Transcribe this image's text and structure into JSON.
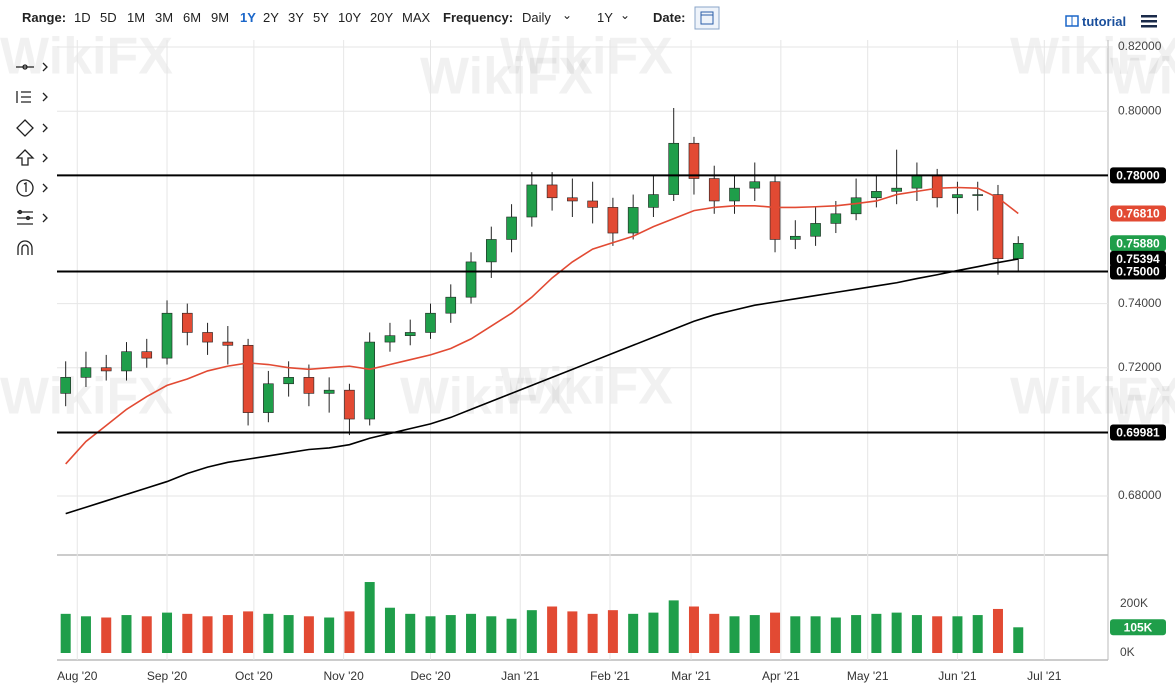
{
  "toolbar": {
    "range_label": "Range:",
    "ranges": [
      "1D",
      "5D",
      "1M",
      "3M",
      "6M",
      "9M",
      "1Y",
      "2Y",
      "3Y",
      "5Y",
      "10Y",
      "20Y",
      "MAX"
    ],
    "active_range": "1Y",
    "active_color": "#1a66c9",
    "frequency_label": "Frequency:",
    "frequency": "Daily",
    "period": "1Y",
    "date_label": "Date:",
    "tutorial": "tutorial"
  },
  "watermark": "WikiFX",
  "chart_data": {
    "type": "candlestick",
    "x": [
      3,
      10,
      17,
      24,
      31,
      38,
      45,
      52,
      59,
      66,
      73,
      80,
      87,
      94,
      101,
      108,
      115,
      122,
      129,
      136,
      143,
      150,
      157,
      164,
      171,
      178,
      185,
      192,
      199,
      206,
      213,
      220,
      227,
      234,
      241,
      248,
      255,
      262,
      269,
      276,
      283,
      290,
      297,
      304,
      311,
      318,
      325,
      332
    ],
    "open": [
      0.712,
      0.717,
      0.72,
      0.719,
      0.725,
      0.723,
      0.737,
      0.731,
      0.728,
      0.727,
      0.706,
      0.715,
      0.717,
      0.712,
      0.713,
      0.704,
      0.728,
      0.73,
      0.731,
      0.737,
      0.742,
      0.753,
      0.76,
      0.767,
      0.777,
      0.773,
      0.772,
      0.77,
      0.762,
      0.77,
      0.774,
      0.79,
      0.779,
      0.772,
      0.776,
      0.778,
      0.76,
      0.761,
      0.765,
      0.768,
      0.773,
      0.775,
      0.776,
      0.78,
      0.773,
      0.774,
      0.774,
      0.754
    ],
    "high": [
      0.722,
      0.725,
      0.724,
      0.728,
      0.729,
      0.741,
      0.74,
      0.734,
      0.733,
      0.729,
      0.719,
      0.722,
      0.721,
      0.717,
      0.715,
      0.731,
      0.734,
      0.735,
      0.74,
      0.746,
      0.756,
      0.764,
      0.771,
      0.781,
      0.781,
      0.779,
      0.778,
      0.773,
      0.774,
      0.78,
      0.801,
      0.792,
      0.783,
      0.78,
      0.784,
      0.78,
      0.766,
      0.77,
      0.772,
      0.779,
      0.78,
      0.788,
      0.784,
      0.782,
      0.778,
      0.778,
      0.777,
      0.761
    ],
    "low": [
      0.708,
      0.714,
      0.716,
      0.716,
      0.72,
      0.721,
      0.727,
      0.724,
      0.721,
      0.702,
      0.703,
      0.711,
      0.708,
      0.706,
      0.699,
      0.702,
      0.725,
      0.727,
      0.729,
      0.734,
      0.74,
      0.748,
      0.756,
      0.764,
      0.769,
      0.767,
      0.765,
      0.758,
      0.76,
      0.767,
      0.772,
      0.774,
      0.768,
      0.768,
      0.772,
      0.756,
      0.757,
      0.758,
      0.762,
      0.766,
      0.77,
      0.771,
      0.772,
      0.77,
      0.768,
      0.769,
      0.749,
      0.75
    ],
    "close": [
      0.717,
      0.72,
      0.719,
      0.725,
      0.723,
      0.737,
      0.731,
      0.728,
      0.727,
      0.706,
      0.715,
      0.717,
      0.712,
      0.713,
      0.704,
      0.728,
      0.73,
      0.731,
      0.737,
      0.742,
      0.753,
      0.76,
      0.767,
      0.777,
      0.773,
      0.772,
      0.77,
      0.762,
      0.77,
      0.774,
      0.79,
      0.779,
      0.772,
      0.776,
      0.778,
      0.76,
      0.761,
      0.765,
      0.768,
      0.773,
      0.775,
      0.776,
      0.78,
      0.773,
      0.774,
      0.774,
      0.754,
      0.7588
    ],
    "up_color": "#1f9e4a",
    "down_color": "#e24a33",
    "xlim": [
      0,
      363
    ],
    "xticks": [
      {
        "value": 7,
        "label": "Aug '20"
      },
      {
        "value": 38,
        "label": "Sep '20"
      },
      {
        "value": 68,
        "label": "Oct '20"
      },
      {
        "value": 99,
        "label": "Nov '20"
      },
      {
        "value": 129,
        "label": "Dec '20"
      },
      {
        "value": 160,
        "label": "Jan '21"
      },
      {
        "value": 191,
        "label": "Feb '21"
      },
      {
        "value": 219,
        "label": "Mar '21"
      },
      {
        "value": 250,
        "label": "Apr '21"
      },
      {
        "value": 280,
        "label": "May '21"
      },
      {
        "value": 311,
        "label": "Jun '21"
      },
      {
        "value": 341,
        "label": "Jul '21"
      }
    ],
    "ylim": [
      0.6616,
      0.8222
    ],
    "yticks": [
      {
        "value": 0.82,
        "label": "0.82000"
      },
      {
        "value": 0.8,
        "label": "0.80000"
      },
      {
        "value": 0.74,
        "label": "0.74000"
      },
      {
        "value": 0.72,
        "label": "0.72000"
      },
      {
        "value": 0.68,
        "label": "0.68000"
      }
    ],
    "grid": true,
    "lines": [
      {
        "color": "#e24a33",
        "values": [
          0.69,
          0.697,
          0.702,
          0.707,
          0.711,
          0.7145,
          0.7165,
          0.719,
          0.7205,
          0.7215,
          0.721,
          0.72,
          0.7195,
          0.72,
          0.7205,
          0.7195,
          0.721,
          0.7225,
          0.724,
          0.726,
          0.729,
          0.733,
          0.737,
          0.742,
          0.748,
          0.753,
          0.757,
          0.759,
          0.761,
          0.764,
          0.7665,
          0.769,
          0.77,
          0.7705,
          0.7705,
          0.77,
          0.77,
          0.7702,
          0.7705,
          0.7712,
          0.772,
          0.774,
          0.775,
          0.776,
          0.7762,
          0.776,
          0.773,
          0.7681
        ]
      },
      {
        "color": "#000000",
        "values": [
          0.6745,
          0.6765,
          0.6785,
          0.6805,
          0.6825,
          0.6845,
          0.687,
          0.689,
          0.6905,
          0.6915,
          0.6925,
          0.6935,
          0.6945,
          0.695,
          0.696,
          0.698,
          0.6995,
          0.701,
          0.7025,
          0.7045,
          0.707,
          0.7095,
          0.712,
          0.7145,
          0.717,
          0.7195,
          0.722,
          0.7245,
          0.727,
          0.7295,
          0.732,
          0.7345,
          0.7365,
          0.738,
          0.7395,
          0.7405,
          0.7415,
          0.7425,
          0.7435,
          0.7445,
          0.7455,
          0.7465,
          0.7478,
          0.749,
          0.7503,
          0.7515,
          0.7528,
          0.7539
        ]
      }
    ],
    "hlines": [
      {
        "value": 0.78,
        "label": "0.78000"
      },
      {
        "value": 0.75,
        "label": "0.75000"
      },
      {
        "value": 0.69981,
        "label": "0.69981"
      }
    ],
    "hline_color": "#000000",
    "badges": [
      {
        "value": 0.7681,
        "label": "0.76810",
        "color": "#e24a33"
      },
      {
        "value": 0.7588,
        "label": "0.75880",
        "color": "#1f9e4a"
      },
      {
        "value": 0.75394,
        "label": "0.75394",
        "color": "#000000"
      }
    ],
    "volume": {
      "values": [
        160000,
        150000,
        145000,
        155000,
        150000,
        165000,
        160000,
        150000,
        155000,
        170000,
        160000,
        155000,
        150000,
        145000,
        170000,
        290000,
        185000,
        160000,
        150000,
        155000,
        160000,
        150000,
        140000,
        175000,
        190000,
        170000,
        160000,
        175000,
        160000,
        165000,
        215000,
        190000,
        160000,
        150000,
        155000,
        165000,
        150000,
        150000,
        145000,
        155000,
        160000,
        165000,
        155000,
        150000,
        150000,
        155000,
        180000,
        105000
      ],
      "ylim": [
        0,
        380000
      ],
      "yticks": [
        {
          "value": 200000,
          "label": "200K"
        },
        {
          "value": 0,
          "label": "0K"
        }
      ],
      "badge": {
        "value": 105000,
        "label": "105K",
        "color": "#1f9e4a"
      }
    }
  }
}
